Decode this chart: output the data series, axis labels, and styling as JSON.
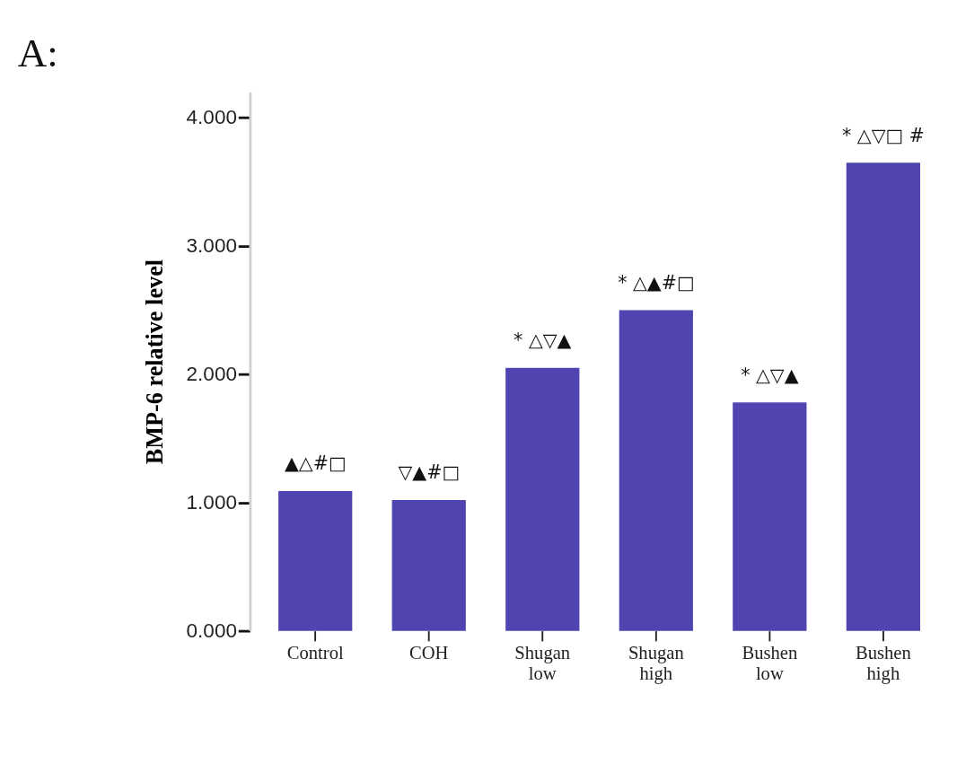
{
  "chart_data": {
    "type": "bar",
    "title": "A:",
    "ylabel": "BMP-6 relative level",
    "categories": [
      "Control",
      "COH",
      "Shugan low",
      "Shugan high",
      "Bushen low",
      "Bushen high"
    ],
    "values": [
      1.09,
      1.02,
      2.05,
      2.5,
      1.78,
      3.65
    ],
    "color": "#4f44b0",
    "ylim": [
      0,
      4.2
    ],
    "yticks": [
      {
        "value": 0,
        "label": "0.000"
      },
      {
        "value": 1,
        "label": "1.000"
      },
      {
        "value": 2,
        "label": "2.000"
      },
      {
        "value": 3,
        "label": "3.000"
      },
      {
        "value": 4,
        "label": "4.000"
      }
    ],
    "grid": false,
    "annotations": [
      {
        "text": "▲△#□",
        "x": "Control",
        "y": 1.09
      },
      {
        "text": "▽▲#□",
        "x": "COH",
        "y": 1.02
      },
      {
        "text": "* △▽▲",
        "x": "Shugan low",
        "y": 2.05
      },
      {
        "text": "* △▲#□",
        "x": "Shugan high",
        "y": 2.5
      },
      {
        "text": "* △▽▲",
        "x": "Bushen low",
        "y": 1.78
      },
      {
        "text": "* △▽□ #",
        "x": "Bushen high",
        "y": 3.65
      }
    ]
  }
}
